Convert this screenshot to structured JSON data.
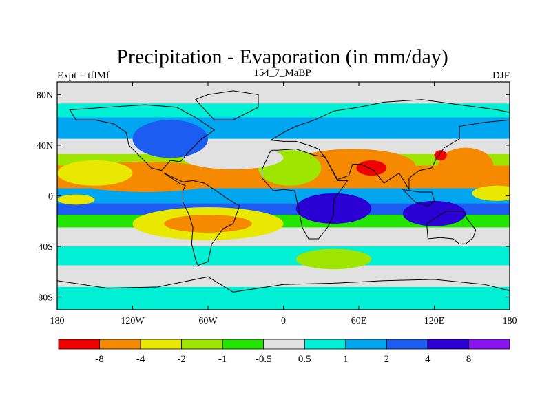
{
  "chart_data": {
    "type": "heatmap",
    "title": "Precipitation - Evaporation (in mm/day)",
    "subtitle_left": "Expt = tflMf",
    "subtitle_center": "154_7_MaBP",
    "subtitle_right": "DJF",
    "x_ticks": [
      {
        "value": -180,
        "label": "180"
      },
      {
        "value": -120,
        "label": "120W"
      },
      {
        "value": -60,
        "label": "60W"
      },
      {
        "value": 0,
        "label": "0"
      },
      {
        "value": 60,
        "label": "60E"
      },
      {
        "value": 120,
        "label": "120E"
      },
      {
        "value": 180,
        "label": "180"
      }
    ],
    "y_ticks": [
      {
        "value": 80,
        "label": "80N"
      },
      {
        "value": 40,
        "label": "40N"
      },
      {
        "value": 0,
        "label": "0"
      },
      {
        "value": -40,
        "label": "40S"
      },
      {
        "value": -80,
        "label": "80S"
      }
    ],
    "xlim": [
      -180,
      180
    ],
    "ylim": [
      -90,
      90
    ],
    "levels": [
      -8,
      -4,
      -2,
      -1,
      -0.5,
      0.5,
      1,
      2,
      4,
      8
    ],
    "level_labels": [
      "-8",
      "-4",
      "-2",
      "-1",
      "-0.5",
      "0.5",
      "1",
      "2",
      "4",
      "8"
    ],
    "colors": [
      "#f00000",
      "#f58a00",
      "#e8e800",
      "#9ee600",
      "#22e600",
      "#e1e1e1",
      "#00f0d6",
      "#00a6f0",
      "#1c5cf0",
      "#2a00d4",
      "#8a14f0"
    ],
    "bands": [
      {
        "lat": [
          73,
          90
        ],
        "cat": 5
      },
      {
        "lat": [
          62,
          73
        ],
        "cat": 6
      },
      {
        "lat": [
          45,
          62
        ],
        "cat": 7
      },
      {
        "lat": [
          33,
          45
        ],
        "cat": 5
      },
      {
        "lat": [
          24,
          33
        ],
        "cat": 3
      },
      {
        "lat": [
          6,
          24
        ],
        "cat": 1
      },
      {
        "lat": [
          -6,
          6
        ],
        "cat": 7
      },
      {
        "lat": [
          -15,
          -6
        ],
        "cat": 8
      },
      {
        "lat": [
          -25,
          -15
        ],
        "cat": 4
      },
      {
        "lat": [
          -40,
          -25
        ],
        "cat": 5
      },
      {
        "lat": [
          -55,
          -40
        ],
        "cat": 6
      },
      {
        "lat": [
          -72,
          -55
        ],
        "cat": 5
      },
      {
        "lat": [
          -90,
          -72
        ],
        "cat": 6
      }
    ],
    "blobs": [
      {
        "lon": -60,
        "lat": -22,
        "rlon": 60,
        "rlat": 13,
        "cat": 2
      },
      {
        "lon": -60,
        "lat": -22,
        "rlon": 35,
        "rlat": 7,
        "cat": 1
      },
      {
        "lon": -110,
        "lat": 15,
        "rlon": 65,
        "rlat": 12,
        "cat": 1
      },
      {
        "lon": -150,
        "lat": 18,
        "rlon": 30,
        "rlat": 10,
        "cat": 2
      },
      {
        "lon": 55,
        "lat": 24,
        "rlon": 50,
        "rlat": 13,
        "cat": 1
      },
      {
        "lon": 70,
        "lat": 22,
        "rlon": 12,
        "rlat": 6,
        "cat": 0
      },
      {
        "lon": 145,
        "lat": 24,
        "rlon": 22,
        "rlat": 14,
        "cat": 1
      },
      {
        "lon": 125,
        "lat": 32,
        "rlon": 5,
        "rlat": 4,
        "cat": 0
      },
      {
        "lon": 5,
        "lat": 22,
        "rlon": 25,
        "rlat": 14,
        "cat": 3
      },
      {
        "lon": -40,
        "lat": 30,
        "rlon": 40,
        "rlat": 9,
        "cat": 5
      },
      {
        "lon": 40,
        "lat": -10,
        "rlon": 30,
        "rlat": 12,
        "cat": 9
      },
      {
        "lon": 120,
        "lat": -14,
        "rlon": 25,
        "rlat": 10,
        "cat": 9
      },
      {
        "lon": -90,
        "lat": 45,
        "rlon": 30,
        "rlat": 15,
        "cat": 8
      },
      {
        "lon": 170,
        "lat": 2,
        "rlon": 20,
        "rlat": 6,
        "cat": 2
      },
      {
        "lon": -165,
        "lat": -3,
        "rlon": 15,
        "rlat": 4,
        "cat": 2
      },
      {
        "lon": 40,
        "lat": -50,
        "rlon": 30,
        "rlat": 8,
        "cat": 3
      }
    ],
    "colorbar_position": "bottom"
  }
}
